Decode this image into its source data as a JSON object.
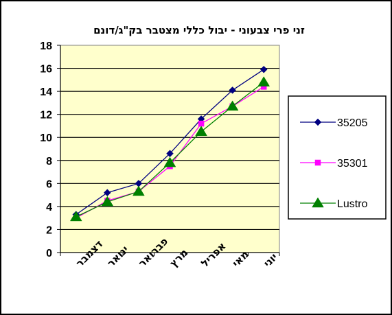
{
  "chart_data": {
    "type": "line",
    "title": "זני פרי צבעוני - יבול כללי מצטבר בק\"ג/דונם",
    "xlabel": "",
    "ylabel": "",
    "categories": [
      "דצמבר",
      "ינואר",
      "פברואר",
      "מרץ",
      "אפריל",
      "מאי",
      "יוני"
    ],
    "ylim": [
      0,
      18
    ],
    "ytick_step": 2,
    "yticks": [
      "0",
      "2",
      "4",
      "6",
      "8",
      "10",
      "12",
      "14",
      "16",
      "18"
    ],
    "grid": "horizontal",
    "legend": "right",
    "series": [
      {
        "name": "35205",
        "values": [
          3.3,
          5.2,
          6.0,
          8.6,
          11.6,
          14.1,
          15.9
        ],
        "color": "#000080",
        "marker": "diamond"
      },
      {
        "name": "35301",
        "values": [
          3.0,
          4.5,
          5.3,
          7.5,
          11.2,
          12.7,
          14.4
        ],
        "color": "#ff00ff",
        "marker": "square"
      },
      {
        "name": "Lustro",
        "values": [
          3.1,
          4.4,
          5.3,
          7.8,
          10.5,
          12.7,
          14.8
        ],
        "color": "#008000",
        "marker": "triangle"
      }
    ],
    "plot_background": "#ffffcc"
  }
}
